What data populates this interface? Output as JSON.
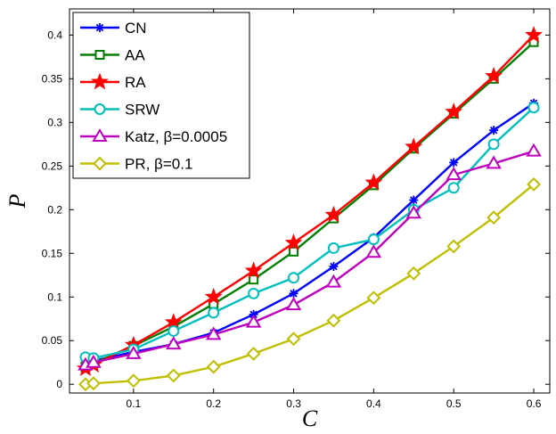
{
  "chart_data": {
    "type": "line",
    "title": "",
    "xlabel": "C",
    "ylabel": "P",
    "xlim": [
      0.02,
      0.62
    ],
    "ylim": [
      -0.01,
      0.43
    ],
    "xticks": [
      "0.1",
      "0.2",
      "0.3",
      "0.4",
      "0.5",
      "0.6"
    ],
    "yticks": [
      "0",
      "0.05",
      "0.1",
      "0.15",
      "0.2",
      "0.25",
      "0.3",
      "0.35",
      "0.4"
    ],
    "grid": false,
    "legend_position": "top-left",
    "series": [
      {
        "name": "CN",
        "color": "#0000ff",
        "marker": "asterisk",
        "x": [
          0.04,
          0.05,
          0.1,
          0.15,
          0.2,
          0.25,
          0.3,
          0.35,
          0.4,
          0.45,
          0.5,
          0.55,
          0.6
        ],
        "values": [
          0.025,
          0.027,
          0.037,
          0.046,
          0.059,
          0.08,
          0.104,
          0.135,
          0.168,
          0.211,
          0.254,
          0.291,
          0.322
        ]
      },
      {
        "name": "AA",
        "color": "#007f00",
        "marker": "square",
        "x": [
          0.04,
          0.05,
          0.1,
          0.15,
          0.2,
          0.25,
          0.3,
          0.35,
          0.4,
          0.45,
          0.5,
          0.55,
          0.6
        ],
        "values": [
          0.02,
          0.024,
          0.044,
          0.066,
          0.092,
          0.12,
          0.152,
          0.19,
          0.228,
          0.27,
          0.31,
          0.35,
          0.392
        ]
      },
      {
        "name": "RA",
        "color": "#ff0000",
        "marker": "star",
        "x": [
          0.04,
          0.05,
          0.1,
          0.15,
          0.2,
          0.25,
          0.3,
          0.35,
          0.4,
          0.45,
          0.5,
          0.55,
          0.6
        ],
        "values": [
          0.018,
          0.022,
          0.045,
          0.071,
          0.1,
          0.13,
          0.162,
          0.194,
          0.231,
          0.272,
          0.312,
          0.353,
          0.4
        ]
      },
      {
        "name": "SRW",
        "color": "#00bfbf",
        "marker": "circle",
        "x": [
          0.04,
          0.05,
          0.1,
          0.15,
          0.2,
          0.25,
          0.3,
          0.35,
          0.4,
          0.45,
          0.5,
          0.55,
          0.6
        ],
        "values": [
          0.031,
          0.03,
          0.04,
          0.061,
          0.082,
          0.104,
          0.122,
          0.156,
          0.166,
          0.2,
          0.225,
          0.275,
          0.317
        ]
      },
      {
        "name": "Katz, β=0.0005",
        "color": "#bf00bf",
        "marker": "triangle",
        "x": [
          0.04,
          0.05,
          0.1,
          0.15,
          0.2,
          0.25,
          0.3,
          0.35,
          0.4,
          0.45,
          0.5,
          0.55,
          0.6
        ],
        "values": [
          0.022,
          0.025,
          0.035,
          0.046,
          0.057,
          0.071,
          0.091,
          0.117,
          0.151,
          0.196,
          0.24,
          0.253,
          0.267
        ]
      },
      {
        "name": "PR, β=0.1",
        "color": "#bfbf00",
        "marker": "diamond",
        "x": [
          0.04,
          0.05,
          0.1,
          0.15,
          0.2,
          0.25,
          0.3,
          0.35,
          0.4,
          0.45,
          0.5,
          0.55,
          0.6
        ],
        "values": [
          0.0,
          0.001,
          0.004,
          0.01,
          0.02,
          0.035,
          0.052,
          0.073,
          0.099,
          0.127,
          0.158,
          0.191,
          0.229
        ]
      }
    ]
  }
}
